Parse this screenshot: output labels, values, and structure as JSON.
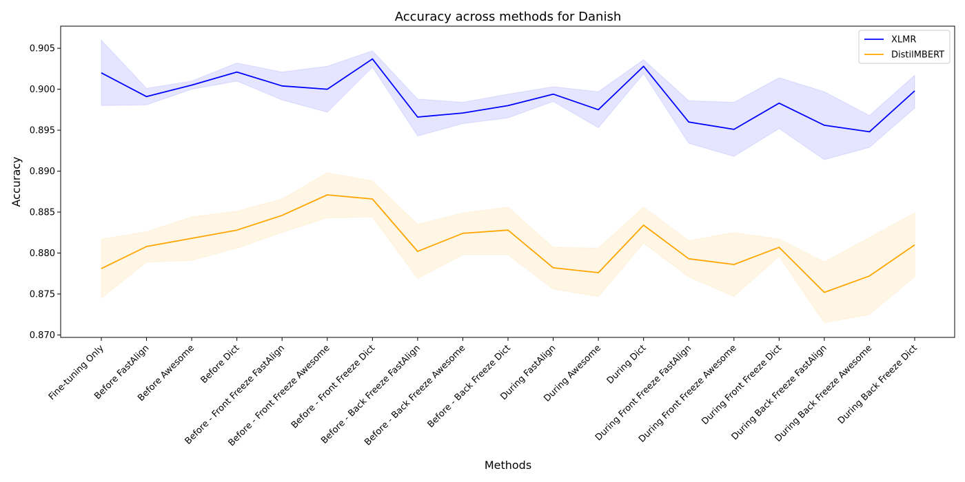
{
  "chart_data": {
    "type": "line",
    "title": "Accuracy across methods for Danish",
    "xlabel": "Methods",
    "ylabel": "Accuracy",
    "ylim": [
      0.8697,
      0.9077
    ],
    "yticks": [
      0.87,
      0.875,
      0.88,
      0.885,
      0.89,
      0.895,
      0.9,
      0.905
    ],
    "ytick_labels": [
      "0.870",
      "0.875",
      "0.880",
      "0.885",
      "0.890",
      "0.895",
      "0.900",
      "0.905"
    ],
    "grid": false,
    "legend_position": "top-right",
    "categories": [
      "Fine-tuning Only",
      "Before FastAlign",
      "Before Awesome",
      "Before Dict",
      "Before - Front Freeze FastAlign",
      "Before - Front Freeze Awesome",
      "Before - Front Freeze Dict",
      "Before - Back Freeze FastAlign",
      "Before - Back Freeze Awesome",
      "Before - Back Freeze Dict",
      "During FastAlign",
      "During Awesome",
      "During Dict",
      "During Front Freeze FastAlign",
      "During Front Freeze Awesome",
      "During Front Freeze Dict",
      "During Back Freeze FastAlign",
      "During Back Freeze Awesome",
      "During Back Freeze Dict"
    ],
    "series": [
      {
        "name": "XLMR",
        "color": "#0000ff",
        "band_color": "#0000ff",
        "values": [
          0.902,
          0.8991,
          0.9005,
          0.9021,
          0.9004,
          0.9,
          0.9037,
          0.8966,
          0.8971,
          0.898,
          0.8994,
          0.8975,
          0.9028,
          0.896,
          0.8951,
          0.8983,
          0.8956,
          0.8948,
          0.8998
        ],
        "upper": [
          0.906,
          0.9001,
          0.901,
          0.9032,
          0.9021,
          0.9028,
          0.9047,
          0.8988,
          0.8984,
          0.8994,
          0.9003,
          0.8997,
          0.9036,
          0.8986,
          0.8984,
          0.9014,
          0.8997,
          0.8968,
          0.9017
        ],
        "lower": [
          0.898,
          0.8981,
          0.9,
          0.901,
          0.8987,
          0.8972,
          0.9027,
          0.8943,
          0.8958,
          0.8965,
          0.8985,
          0.8953,
          0.9019,
          0.8934,
          0.8918,
          0.8952,
          0.8914,
          0.8929,
          0.8977
        ]
      },
      {
        "name": "DistilMBERT",
        "color": "#ffa500",
        "band_color": "#ffa500",
        "values": [
          0.8781,
          0.8808,
          0.8818,
          0.8828,
          0.8846,
          0.8871,
          0.8866,
          0.8802,
          0.8824,
          0.8828,
          0.8782,
          0.8776,
          0.8834,
          0.8793,
          0.8786,
          0.8807,
          0.8752,
          0.8772,
          0.881
        ],
        "upper": [
          0.8817,
          0.8826,
          0.8844,
          0.8851,
          0.8866,
          0.8898,
          0.8888,
          0.8835,
          0.8849,
          0.8856,
          0.8807,
          0.8806,
          0.8856,
          0.8815,
          0.8825,
          0.8817,
          0.8789,
          0.8819,
          0.8849
        ],
        "lower": [
          0.8745,
          0.8789,
          0.8791,
          0.8806,
          0.8825,
          0.8843,
          0.8844,
          0.8769,
          0.8798,
          0.8798,
          0.8756,
          0.8747,
          0.8812,
          0.8771,
          0.8747,
          0.8796,
          0.8715,
          0.8725,
          0.8771
        ]
      }
    ]
  }
}
